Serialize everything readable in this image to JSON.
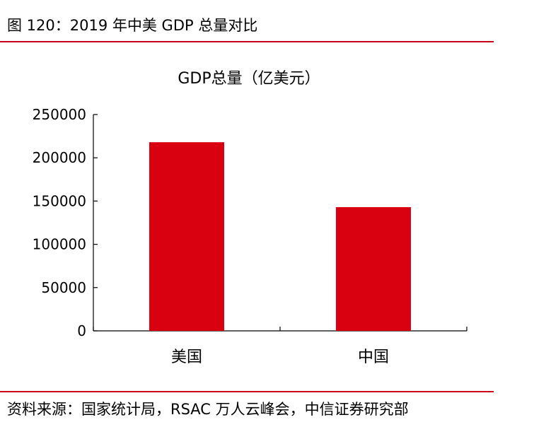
{
  "caption": "图 120：2019 年中美 GDP 总量对比",
  "source": "资料来源：国家统计局，RSAC 万人云峰会，中信证券研究部",
  "colors": {
    "bar": "#d9000f",
    "rule": "#c8001a"
  },
  "chart_data": {
    "type": "bar",
    "title": "GDP总量（亿美元）",
    "categories": [
      "美国",
      "中国"
    ],
    "values": [
      218000,
      143000
    ],
    "ylim": [
      0,
      250000
    ],
    "yticks": [
      0,
      50000,
      100000,
      150000,
      200000,
      250000
    ],
    "ytick_labels": [
      "0",
      "50000",
      "100000",
      "150000",
      "200000",
      "250000"
    ],
    "grid": false,
    "legend": "none"
  }
}
